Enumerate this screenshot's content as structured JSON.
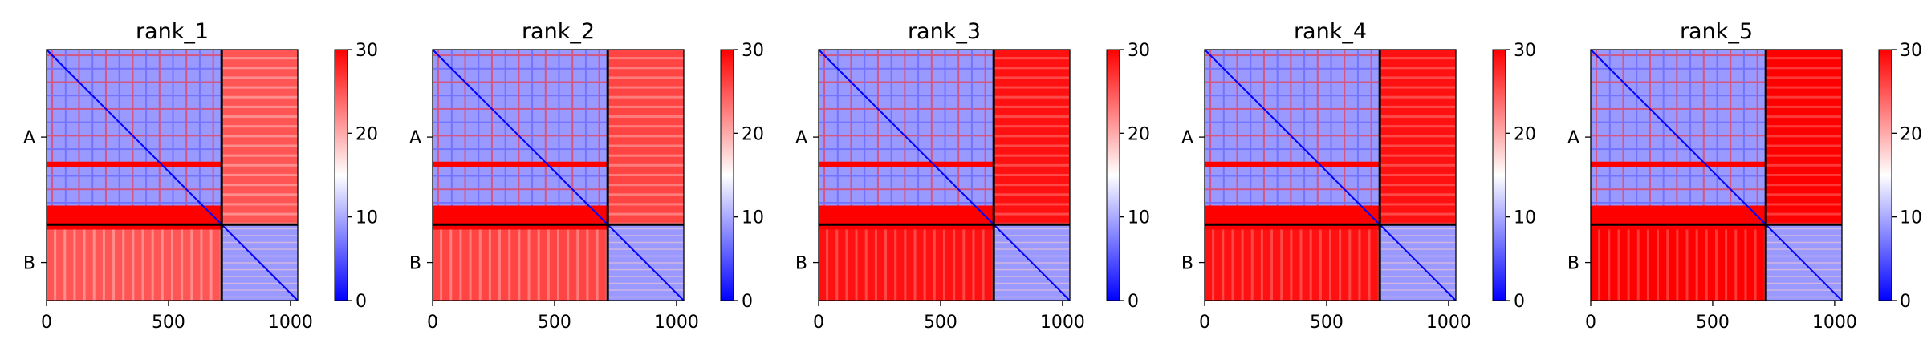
{
  "chart_data": {
    "type": "heatmap",
    "colormap": {
      "name": "bwr",
      "low": "#0000ff",
      "mid": "#ffffff",
      "high": "#ff0000",
      "vmin": 0,
      "vmax": 30
    },
    "colorbar_ticks": [
      0,
      10,
      20,
      30
    ],
    "x_ticks": [
      0,
      500,
      1000
    ],
    "x_range": [
      0,
      1030
    ],
    "y_range": [
      0,
      1030
    ],
    "chains": [
      {
        "label": "A",
        "start": 0,
        "end": 718
      },
      {
        "label": "B",
        "start": 718,
        "end": 1030
      }
    ],
    "panels": [
      {
        "title": "rank_1",
        "block_values": {
          "AA": 9,
          "AB": 25,
          "BA": 25,
          "BB": 9
        },
        "intra_off_diag_base": 9
      },
      {
        "title": "rank_2",
        "block_values": {
          "AA": 9,
          "AB": 26,
          "BA": 26,
          "BB": 9
        },
        "intra_off_diag_base": 9
      },
      {
        "title": "rank_3",
        "block_values": {
          "AA": 9,
          "AB": 29,
          "BA": 29,
          "BB": 9
        },
        "intra_off_diag_base": 9
      },
      {
        "title": "rank_4",
        "block_values": {
          "AA": 9,
          "AB": 29,
          "BA": 29,
          "BB": 9
        },
        "intra_off_diag_base": 9
      },
      {
        "title": "rank_5",
        "block_values": {
          "AA": 9,
          "AB": 30,
          "BA": 30,
          "BB": 9
        },
        "intra_off_diag_base": 9
      }
    ]
  }
}
